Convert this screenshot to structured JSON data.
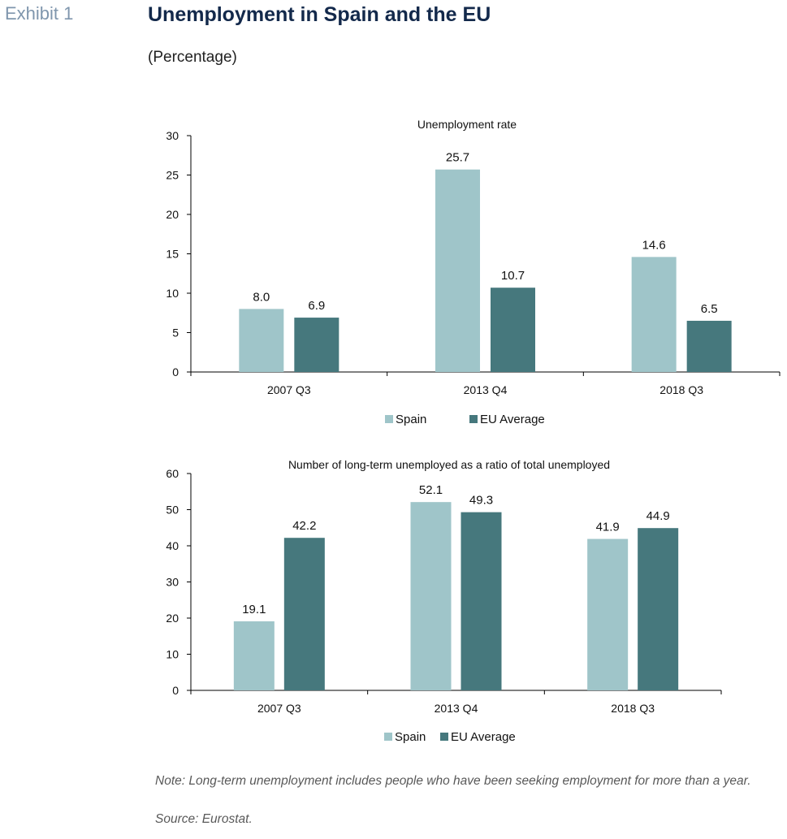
{
  "header": {
    "exhibit": "Exhibit 1",
    "title": "Unemployment in Spain and the EU",
    "subtitle": "(Percentage)"
  },
  "chart_data": [
    {
      "type": "bar",
      "title": "Unemployment rate",
      "categories": [
        "2007 Q3",
        "2013 Q4",
        "2018 Q3"
      ],
      "series": [
        {
          "name": "Spain",
          "values": [
            8.0,
            25.7,
            14.6
          ],
          "color": "#9fc5c9"
        },
        {
          "name": "EU Average",
          "values": [
            6.9,
            10.7,
            6.5
          ],
          "color": "#46787d"
        }
      ],
      "ylim": [
        0,
        30
      ],
      "yticks": [
        0,
        5,
        10,
        15,
        20,
        25,
        30
      ],
      "xlabel": "",
      "ylabel": "",
      "grid": false,
      "legend": "bottom"
    },
    {
      "type": "bar",
      "title": "Number of long-term unemployed as a ratio of total unemployed",
      "categories": [
        "2007 Q3",
        "2013 Q4",
        "2018 Q3"
      ],
      "series": [
        {
          "name": "Spain",
          "values": [
            19.1,
            52.1,
            41.9
          ],
          "color": "#9fc5c9"
        },
        {
          "name": "EU Average",
          "values": [
            42.2,
            49.3,
            44.9
          ],
          "color": "#46787d"
        }
      ],
      "ylim": [
        0,
        60
      ],
      "yticks": [
        0,
        10,
        20,
        30,
        40,
        50,
        60
      ],
      "xlabel": "",
      "ylabel": "",
      "grid": false,
      "legend": "bottom"
    }
  ],
  "footer": {
    "note": "Note: Long-term unemployment includes people who have been seeking employment for more than a year.",
    "source": "Source: Eurostat."
  }
}
